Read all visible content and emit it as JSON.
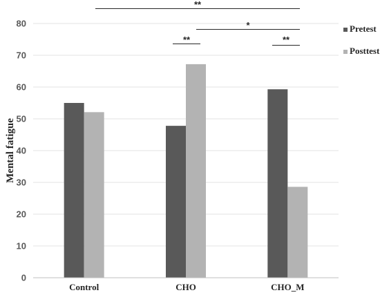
{
  "chart_data": {
    "type": "bar",
    "ylabel": "Mental fatigue",
    "ylim": [
      0,
      80
    ],
    "yticks": [
      0,
      10,
      20,
      30,
      40,
      50,
      60,
      70,
      80
    ],
    "categories": [
      "Control",
      "CHO",
      "CHO_M"
    ],
    "series": [
      {
        "name": "Pretest",
        "color": "#595959",
        "values": [
          55.0,
          47.8,
          59.3
        ]
      },
      {
        "name": "Posttest",
        "color": "#b3b3b3",
        "values": [
          52.1,
          67.2,
          28.6
        ]
      }
    ],
    "grid": true,
    "legend": "right",
    "significance": [
      {
        "label": "**",
        "from": "Control",
        "to": "CHO_M"
      },
      {
        "label": "*",
        "from": "CHO Posttest",
        "to": "CHO_M"
      },
      {
        "label": "**",
        "from": "CHO Pretest",
        "to": "CHO Posttest"
      },
      {
        "label": "**",
        "from": "CHO_M Pretest",
        "to": "CHO_M Posttest"
      }
    ]
  }
}
